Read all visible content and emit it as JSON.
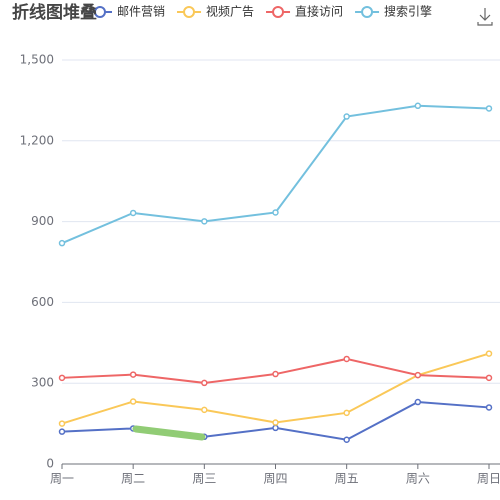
{
  "chart_data": {
    "type": "line",
    "title": "折线图堆叠",
    "categories": [
      "周一",
      "周二",
      "周三",
      "周四",
      "周五",
      "周六",
      "周日"
    ],
    "series": [
      {
        "name": "邮件营销",
        "color": "#5470c6",
        "values": [
          120,
          132,
          101,
          134,
          90,
          230,
          210
        ]
      },
      {
        "name": "视频广告",
        "color": "#fac858",
        "values": [
          150,
          232,
          201,
          154,
          190,
          330,
          410
        ]
      },
      {
        "name": "直接访问",
        "color": "#ee6666",
        "values": [
          320,
          332,
          301,
          334,
          390,
          330,
          320
        ]
      },
      {
        "name": "搜索引擎",
        "color": "#73c0de",
        "values": [
          820,
          932,
          901,
          934,
          1290,
          1330,
          1320
        ]
      }
    ],
    "ylim": [
      0,
      1500
    ],
    "yticks": [
      0,
      300,
      600,
      900,
      {
        "value": 1200,
        "label": "1,200"
      },
      {
        "value": 1500,
        "label": "1,500"
      }
    ],
    "grid": true
  }
}
